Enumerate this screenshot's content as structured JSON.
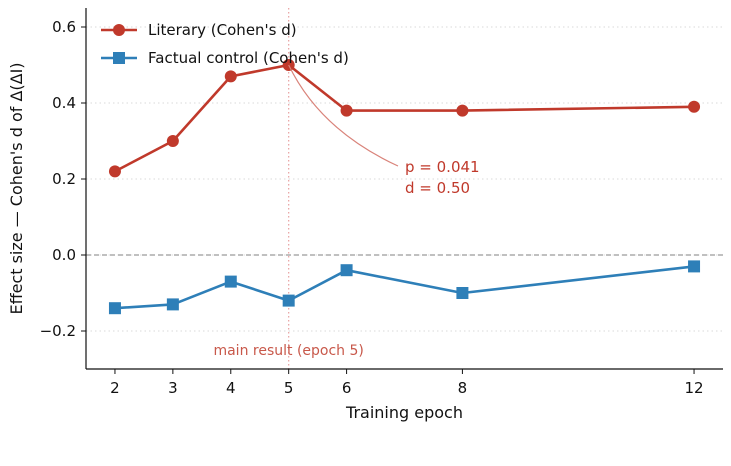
{
  "chart_data": {
    "type": "line",
    "xlabel": "Training epoch",
    "ylabel": "Effect size — Cohen's d of Δ(ΔI)",
    "xlim": [
      1.5,
      12.5
    ],
    "ylim": [
      -0.3,
      0.65
    ],
    "x_ticks": [
      2,
      3,
      4,
      5,
      6,
      8,
      12
    ],
    "y_ticks": [
      -0.2,
      0.0,
      0.2,
      0.4,
      0.6
    ],
    "y_tick_labels": [
      "−0.2",
      "0.0",
      "0.2",
      "0.4",
      "0.6"
    ],
    "grid": "horizontal, dotted",
    "legend": "top-left",
    "reference_line_y": 0,
    "highlight_x": 5,
    "highlight_label": "main result (epoch 5)",
    "annotation": {
      "line1": "p = 0.041",
      "line2": "d = 0.50",
      "x": 5,
      "y": 0.5,
      "color": "#c0392b"
    },
    "series": [
      {
        "name": "Literary (Cohen's d)",
        "color": "#c0392b",
        "marker": "circle",
        "x": [
          2,
          3,
          4,
          5,
          6,
          8,
          12
        ],
        "y": [
          0.22,
          0.3,
          0.47,
          0.5,
          0.38,
          0.38,
          0.39
        ]
      },
      {
        "name": "Factual control (Cohen's d)",
        "color": "#2e7fb8",
        "marker": "square",
        "x": [
          2,
          3,
          4,
          5,
          6,
          8,
          12
        ],
        "y": [
          -0.14,
          -0.13,
          -0.07,
          -0.12,
          -0.04,
          -0.1,
          -0.03
        ]
      }
    ]
  }
}
